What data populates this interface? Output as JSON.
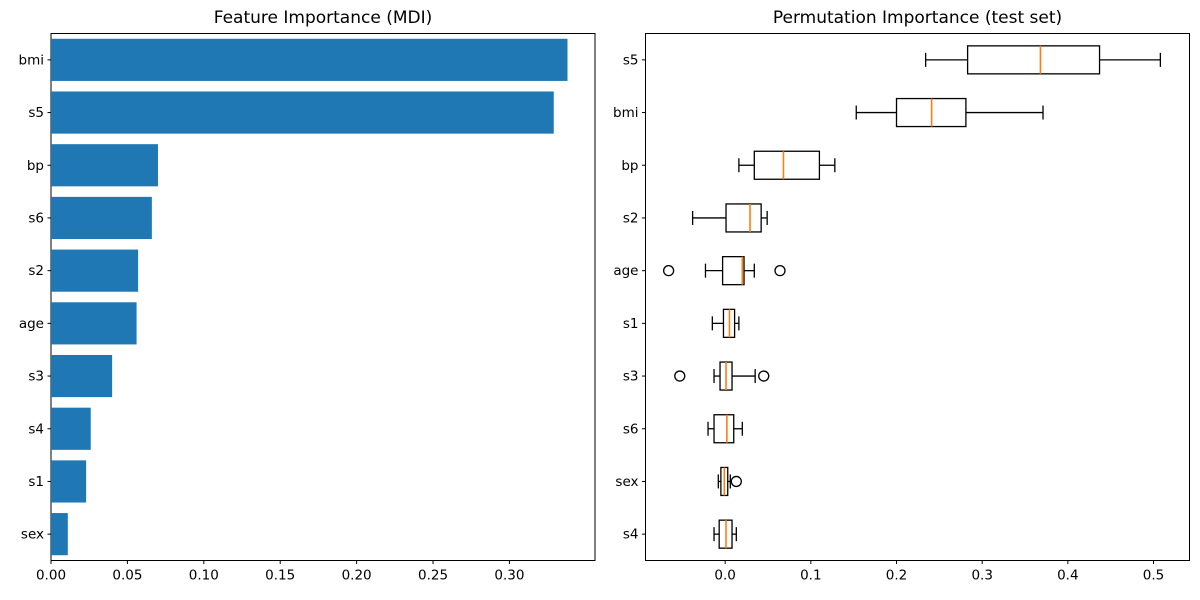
{
  "figure": {
    "background": "#ffffff",
    "text_color": "#000000"
  },
  "chart_data": [
    {
      "type": "bar",
      "orientation": "horizontal",
      "title": "Feature Importance (MDI)",
      "categories": [
        "bmi",
        "s5",
        "bp",
        "s6",
        "s2",
        "age",
        "s3",
        "s4",
        "s1",
        "sex"
      ],
      "values": [
        0.338,
        0.329,
        0.07,
        0.066,
        0.057,
        0.056,
        0.04,
        0.026,
        0.023,
        0.011
      ],
      "bar_color": "#1f77b4",
      "xlim": [
        0,
        0.356
      ],
      "xticks": [
        0.0,
        0.05,
        0.1,
        0.15,
        0.2,
        0.25,
        0.3
      ],
      "xtick_labels": [
        "0.00",
        "0.05",
        "0.10",
        "0.15",
        "0.20",
        "0.25",
        "0.30"
      ],
      "xlabel": "",
      "ylabel": "",
      "grid": false,
      "legend": null
    },
    {
      "type": "boxplot",
      "orientation": "horizontal",
      "title": "Permutation Importance (test set)",
      "categories": [
        "s5",
        "bmi",
        "bp",
        "s2",
        "age",
        "s1",
        "s3",
        "s6",
        "sex",
        "s4"
      ],
      "boxes": [
        {
          "label": "s5",
          "whislo": 0.234,
          "q1": 0.283,
          "med": 0.368,
          "q3": 0.437,
          "whishi": 0.508,
          "fliers": []
        },
        {
          "label": "bmi",
          "whislo": 0.153,
          "q1": 0.2,
          "med": 0.241,
          "q3": 0.281,
          "whishi": 0.371,
          "fliers": []
        },
        {
          "label": "bp",
          "whislo": 0.016,
          "q1": 0.034,
          "med": 0.068,
          "q3": 0.11,
          "whishi": 0.128,
          "fliers": []
        },
        {
          "label": "s2",
          "whislo": -0.038,
          "q1": 0.001,
          "med": 0.029,
          "q3": 0.042,
          "whishi": 0.049,
          "fliers": []
        },
        {
          "label": "age",
          "whislo": -0.023,
          "q1": -0.003,
          "med": 0.02,
          "q3": 0.022,
          "whishi": 0.034,
          "fliers": [
            -0.066,
            0.064
          ]
        },
        {
          "label": "s1",
          "whislo": -0.015,
          "q1": -0.002,
          "med": 0.005,
          "q3": 0.011,
          "whishi": 0.016,
          "fliers": []
        },
        {
          "label": "s3",
          "whislo": -0.013,
          "q1": -0.006,
          "med": 0.001,
          "q3": 0.008,
          "whishi": 0.035,
          "fliers": [
            -0.053,
            0.045
          ]
        },
        {
          "label": "s6",
          "whislo": -0.02,
          "q1": -0.013,
          "med": 0.002,
          "q3": 0.01,
          "whishi": 0.02,
          "fliers": []
        },
        {
          "label": "sex",
          "whislo": -0.008,
          "q1": -0.005,
          "med": -0.001,
          "q3": 0.003,
          "whishi": 0.006,
          "fliers": [
            0.013
          ]
        },
        {
          "label": "s4",
          "whislo": -0.013,
          "q1": -0.007,
          "med": 0.001,
          "q3": 0.008,
          "whishi": 0.013,
          "fliers": []
        }
      ],
      "median_color": "#ff7f0e",
      "box_color": "#000000",
      "xlim": [
        -0.093,
        0.542
      ],
      "xticks": [
        0.0,
        0.1,
        0.2,
        0.3,
        0.4,
        0.5
      ],
      "xtick_labels": [
        "0.0",
        "0.1",
        "0.2",
        "0.3",
        "0.4",
        "0.5"
      ],
      "xlabel": "",
      "ylabel": "",
      "grid": false,
      "legend": null
    }
  ]
}
